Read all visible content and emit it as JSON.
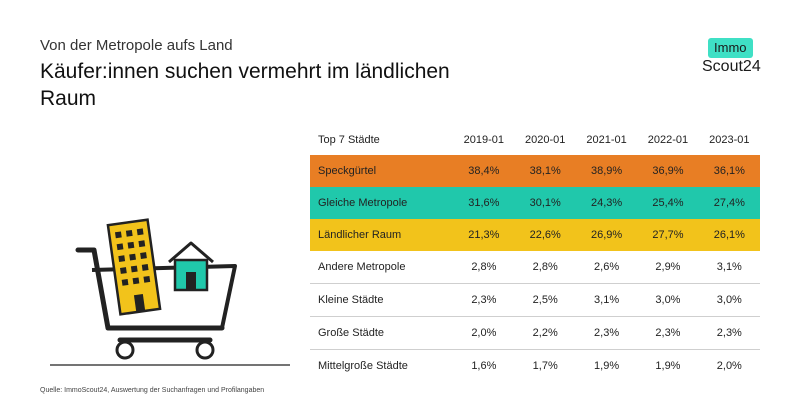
{
  "header": {
    "subtitle": "Von der Metropole aufs Land",
    "title": "Käufer:innen suchen vermehrt im ländlichen Raum"
  },
  "logo": {
    "line1": "Immo",
    "line2": "Scout24",
    "accent": "#3fe0c5"
  },
  "source": "Quelle: ImmoScout24, Auswertung der Suchanfragen und Profilangaben",
  "chart_data": {
    "type": "table",
    "columns": [
      "Top 7 Städte",
      "2019-01",
      "2020-01",
      "2021-01",
      "2022-01",
      "2023-01"
    ],
    "rows": [
      {
        "label": "Speckgürtel",
        "values": [
          "38,4%",
          "38,1%",
          "38,9%",
          "36,9%",
          "36,1%"
        ],
        "highlight": "#e87e24"
      },
      {
        "label": "Gleiche Metropole",
        "values": [
          "31,6%",
          "30,1%",
          "24,3%",
          "25,4%",
          "27,4%"
        ],
        "highlight": "#20c8ab"
      },
      {
        "label": "Ländlicher Raum",
        "values": [
          "21,3%",
          "22,6%",
          "26,9%",
          "27,7%",
          "26,1%"
        ],
        "highlight": "#f2c31b"
      },
      {
        "label": "Andere Metropole",
        "values": [
          "2,8%",
          "2,8%",
          "2,6%",
          "2,9%",
          "3,1%"
        ]
      },
      {
        "label": "Kleine Städte",
        "values": [
          "2,3%",
          "2,5%",
          "3,1%",
          "3,0%",
          "3,0%"
        ]
      },
      {
        "label": "Große Städte",
        "values": [
          "2,0%",
          "2,2%",
          "2,3%",
          "2,3%",
          "2,3%"
        ]
      },
      {
        "label": "Mittelgroße Städte",
        "values": [
          "1,6%",
          "1,7%",
          "1,9%",
          "1,9%",
          "2,0%"
        ]
      }
    ]
  }
}
